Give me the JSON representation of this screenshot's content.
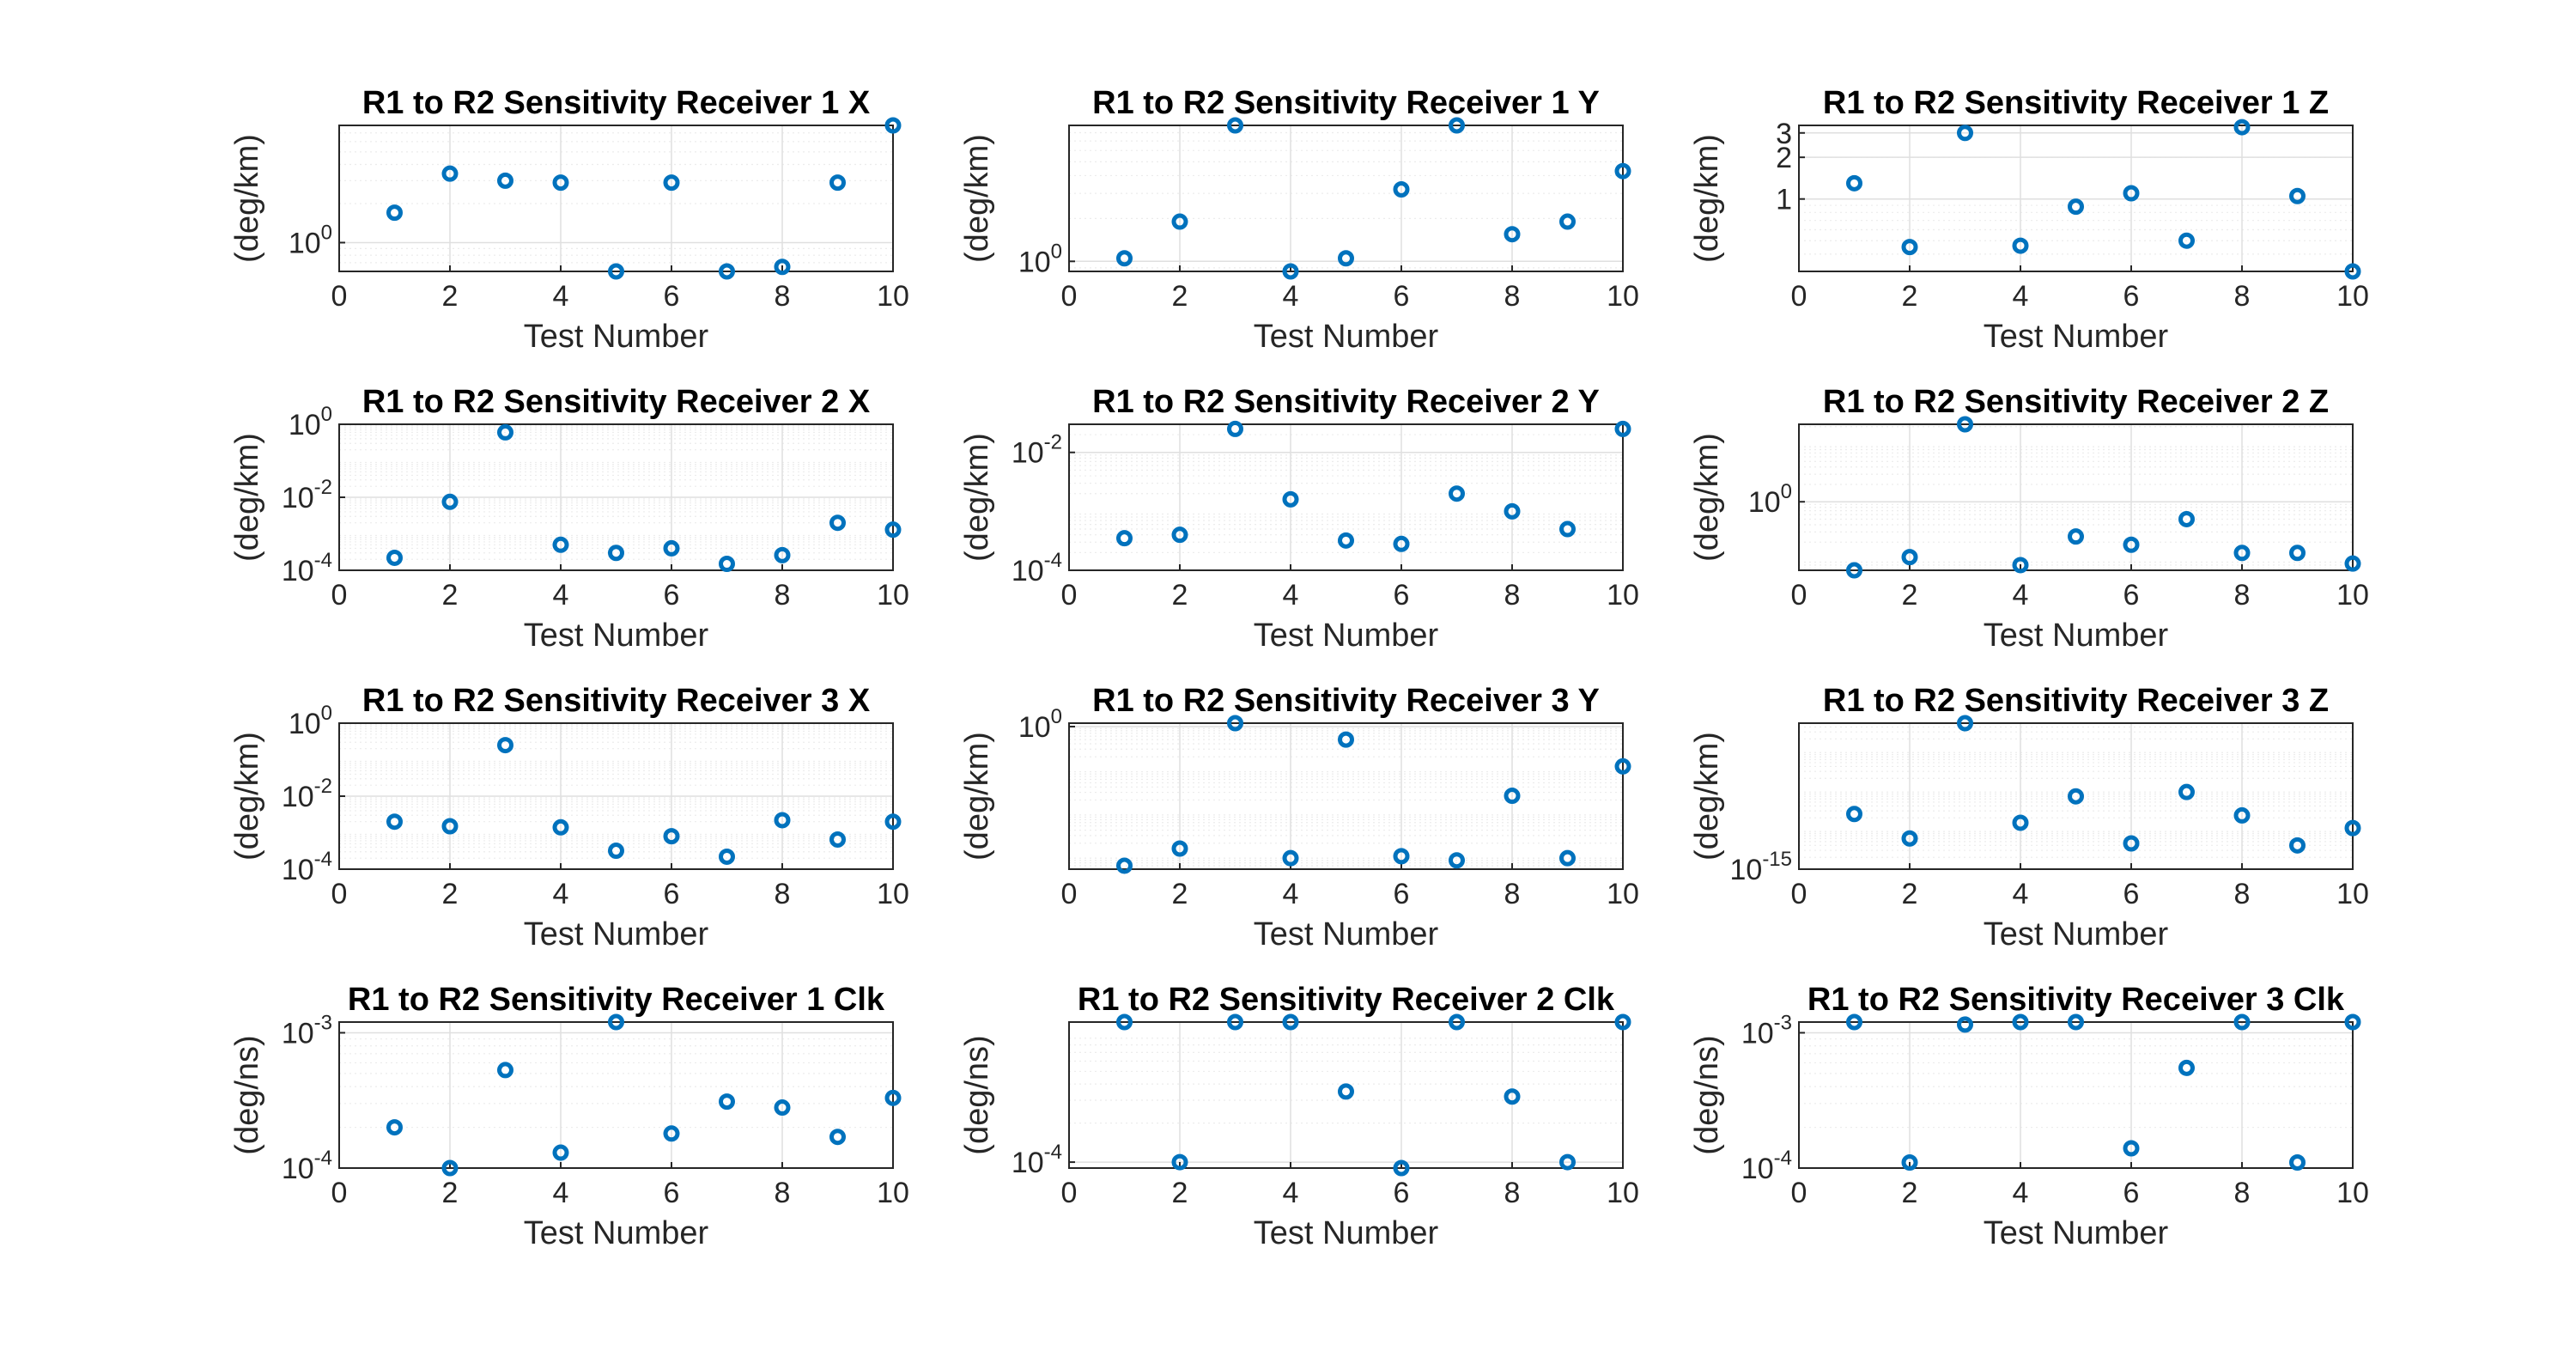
{
  "chart_data": [
    {
      "type": "scatter",
      "title": "R1 to R2 Sensitivity Receiver 1 X",
      "xlabel": "Test Number",
      "ylabel": "(deg/km)",
      "xlim": [
        0,
        10
      ],
      "xticks": [
        0,
        2,
        4,
        6,
        8,
        10
      ],
      "yscale": "log",
      "ylim": [
        0.6,
        8
      ],
      "yticks": [
        1
      ],
      "ytick_labels": [
        {
          "base": "10",
          "exp": "0"
        }
      ],
      "grid": "on",
      "x": [
        1,
        2,
        3,
        4,
        5,
        6,
        7,
        8,
        9,
        10
      ],
      "values": [
        1.7,
        3.4,
        3.0,
        2.9,
        0.6,
        2.9,
        0.6,
        0.65,
        2.9,
        8
      ]
    },
    {
      "type": "scatter",
      "title": "R1 to R2 Sensitivity Receiver 1 Y",
      "xlabel": "Test Number",
      "ylabel": "(deg/km)",
      "xlim": [
        0,
        10
      ],
      "xticks": [
        0,
        2,
        4,
        6,
        8,
        10
      ],
      "yscale": "log",
      "ylim": [
        0.85,
        9
      ],
      "yticks": [
        1
      ],
      "ytick_labels": [
        {
          "base": "10",
          "exp": "0"
        }
      ],
      "grid": "on",
      "x": [
        1,
        2,
        3,
        4,
        5,
        6,
        7,
        8,
        9,
        10
      ],
      "values": [
        1.05,
        1.9,
        9,
        0.85,
        1.05,
        3.2,
        9,
        1.55,
        1.9,
        4.3
      ]
    },
    {
      "type": "scatter",
      "title": "R1 to R2 Sensitivity Receiver 1 Z",
      "xlabel": "Test Number",
      "ylabel": "(deg/km)",
      "xlim": [
        0,
        10
      ],
      "xticks": [
        0,
        2,
        4,
        6,
        8,
        10
      ],
      "yscale": "log",
      "ylim": [
        0.3,
        3.4
      ],
      "yticks": [
        1,
        2,
        3
      ],
      "ytick_labels": [
        {
          "base": "1",
          "exp": ""
        },
        {
          "base": "2",
          "exp": ""
        },
        {
          "base": "3",
          "exp": ""
        }
      ],
      "grid": "on",
      "x": [
        1,
        2,
        3,
        4,
        5,
        6,
        7,
        8,
        9,
        10
      ],
      "values": [
        1.3,
        0.45,
        3.0,
        0.46,
        0.88,
        1.1,
        0.5,
        3.3,
        1.05,
        0.3
      ]
    },
    {
      "type": "scatter",
      "title": "R1 to R2 Sensitivity Receiver 2 X",
      "xlabel": "Test Number",
      "ylabel": "(deg/km)",
      "xlim": [
        0,
        10
      ],
      "xticks": [
        0,
        2,
        4,
        6,
        8,
        10
      ],
      "yscale": "log",
      "ylim": [
        0.0001,
        1
      ],
      "yticks": [
        0.0001,
        0.01,
        1
      ],
      "ytick_labels": [
        {
          "base": "10",
          "exp": "-4"
        },
        {
          "base": "10",
          "exp": "-2"
        },
        {
          "base": "10",
          "exp": "0"
        }
      ],
      "grid": "on",
      "x": [
        1,
        2,
        3,
        4,
        5,
        6,
        7,
        8,
        9,
        10
      ],
      "values": [
        0.00022,
        0.0075,
        0.6,
        0.0005,
        0.0003,
        0.0004,
        0.00015,
        0.00026,
        0.002,
        0.0013
      ]
    },
    {
      "type": "scatter",
      "title": "R1 to R2 Sensitivity Receiver 2 Y",
      "xlabel": "Test Number",
      "ylabel": "(deg/km)",
      "xlim": [
        0,
        10
      ],
      "xticks": [
        0,
        2,
        4,
        6,
        8,
        10
      ],
      "yscale": "log",
      "ylim": [
        0.0001,
        0.03
      ],
      "yticks": [
        0.0001,
        0.01
      ],
      "ytick_labels": [
        {
          "base": "10",
          "exp": "-4"
        },
        {
          "base": "10",
          "exp": "-2"
        }
      ],
      "grid": "on",
      "x": [
        1,
        2,
        3,
        4,
        5,
        6,
        7,
        8,
        9,
        10
      ],
      "values": [
        0.00035,
        0.0004,
        0.025,
        0.0016,
        0.00032,
        0.00028,
        0.002,
        0.001,
        0.0005,
        0.025
      ]
    },
    {
      "type": "scatter",
      "title": "R1 to R2 Sensitivity Receiver 2 Z",
      "xlabel": "Test Number",
      "ylabel": "(deg/km)",
      "xlim": [
        0,
        10
      ],
      "xticks": [
        0,
        2,
        4,
        6,
        8,
        10
      ],
      "yscale": "log",
      "ylim": [
        0.065,
        22
      ],
      "yticks": [
        1
      ],
      "ytick_labels": [
        {
          "base": "10",
          "exp": "0"
        }
      ],
      "grid": "on",
      "x": [
        1,
        2,
        3,
        4,
        5,
        6,
        7,
        8,
        9,
        10
      ],
      "values": [
        0.065,
        0.11,
        22,
        0.08,
        0.25,
        0.18,
        0.5,
        0.13,
        0.13,
        0.085
      ]
    },
    {
      "type": "scatter",
      "title": "R1 to R2 Sensitivity Receiver 3 X",
      "xlabel": "Test Number",
      "ylabel": "(deg/km)",
      "xlim": [
        0,
        10
      ],
      "xticks": [
        0,
        2,
        4,
        6,
        8,
        10
      ],
      "yscale": "log",
      "ylim": [
        0.0001,
        1
      ],
      "yticks": [
        0.0001,
        0.01,
        1
      ],
      "ytick_labels": [
        {
          "base": "10",
          "exp": "-4"
        },
        {
          "base": "10",
          "exp": "-2"
        },
        {
          "base": "10",
          "exp": "0"
        }
      ],
      "grid": "on",
      "x": [
        1,
        2,
        3,
        4,
        5,
        6,
        7,
        8,
        9,
        10
      ],
      "values": [
        0.002,
        0.0015,
        0.25,
        0.0014,
        0.00032,
        0.0008,
        0.00022,
        0.0022,
        0.00065,
        0.002
      ]
    },
    {
      "type": "scatter",
      "title": "R1 to R2 Sensitivity Receiver 3 Y",
      "xlabel": "Test Number",
      "ylabel": "(deg/km)",
      "xlim": [
        0,
        10
      ],
      "xticks": [
        0,
        2,
        4,
        6,
        8,
        10
      ],
      "yscale": "log",
      "ylim": [
        0.0005,
        1.2
      ],
      "yticks": [
        1
      ],
      "ytick_labels": [
        {
          "base": "10",
          "exp": "0"
        }
      ],
      "grid": "on",
      "x": [
        1,
        2,
        3,
        4,
        5,
        6,
        7,
        8,
        9,
        10
      ],
      "values": [
        0.0006,
        0.0015,
        1.2,
        0.0009,
        0.5,
        0.001,
        0.0008,
        0.025,
        0.0009,
        0.12
      ]
    },
    {
      "type": "scatter",
      "title": "R1 to R2 Sensitivity Receiver 3 Z",
      "xlabel": "Test Number",
      "ylabel": "(deg/km)",
      "xlim": [
        0,
        10
      ],
      "xticks": [
        0,
        2,
        4,
        6,
        8,
        10
      ],
      "yscale": "log",
      "ylim": [
        1e-15,
        5e-12
      ],
      "yticks": [
        1e-15
      ],
      "ytick_labels": [
        {
          "base": "10",
          "exp": "-15"
        }
      ],
      "grid": "on",
      "x": [
        1,
        2,
        3,
        4,
        5,
        6,
        7,
        8,
        9,
        10
      ],
      "values": [
        2.5e-14,
        6e-15,
        5e-12,
        1.5e-14,
        7e-14,
        4.5e-15,
        9e-14,
        2.3e-14,
        4e-15,
        1.1e-14
      ]
    },
    {
      "type": "scatter",
      "title": "R1 to R2 Sensitivity Receiver 1 Clk",
      "xlabel": "Test Number",
      "ylabel": "(deg/ns)",
      "xlim": [
        0,
        10
      ],
      "xticks": [
        0,
        2,
        4,
        6,
        8,
        10
      ],
      "yscale": "log",
      "ylim": [
        0.0001,
        0.0012
      ],
      "yticks": [
        0.0001,
        0.001
      ],
      "ytick_labels": [
        {
          "base": "10",
          "exp": "-4"
        },
        {
          "base": "10",
          "exp": "-3"
        }
      ],
      "grid": "on",
      "x": [
        1,
        2,
        3,
        4,
        5,
        6,
        7,
        8,
        9,
        10
      ],
      "values": [
        0.0002,
        0.0001,
        0.00053,
        0.00013,
        0.0012,
        0.00018,
        0.00031,
        0.00028,
        0.00017,
        0.00033
      ]
    },
    {
      "type": "scatter",
      "title": "R1 to R2 Sensitivity Receiver 2 Clk",
      "xlabel": "Test Number",
      "ylabel": "(deg/ns)",
      "xlim": [
        0,
        10
      ],
      "xticks": [
        0,
        2,
        4,
        6,
        8,
        10
      ],
      "yscale": "log",
      "ylim": [
        9e-05,
        0.0012
      ],
      "yticks": [
        0.0001
      ],
      "ytick_labels": [
        {
          "base": "10",
          "exp": "-4"
        }
      ],
      "grid": "on",
      "x": [
        1,
        2,
        3,
        4,
        5,
        6,
        7,
        8,
        9,
        10
      ],
      "values": [
        0.0012,
        0.0001,
        0.0012,
        0.0012,
        0.00035,
        9e-05,
        0.0012,
        0.00032,
        0.0001,
        0.0012
      ]
    },
    {
      "type": "scatter",
      "title": "R1 to R2 Sensitivity Receiver 3 Clk",
      "xlabel": "Test Number",
      "ylabel": "(deg/ns)",
      "xlim": [
        0,
        10
      ],
      "xticks": [
        0,
        2,
        4,
        6,
        8,
        10
      ],
      "yscale": "log",
      "ylim": [
        0.0001,
        0.0012
      ],
      "yticks": [
        0.0001,
        0.001
      ],
      "ytick_labels": [
        {
          "base": "10",
          "exp": "-4"
        },
        {
          "base": "10",
          "exp": "-3"
        }
      ],
      "grid": "on",
      "x": [
        1,
        2,
        3,
        4,
        5,
        6,
        7,
        8,
        9,
        10
      ],
      "values": [
        0.0012,
        0.00011,
        0.00115,
        0.0012,
        0.0012,
        0.00014,
        0.00055,
        0.0012,
        0.00011,
        0.0012
      ]
    }
  ],
  "colors": {
    "marker": "#0072BD",
    "axis": "#262626",
    "grid": "#dfdfdf"
  }
}
